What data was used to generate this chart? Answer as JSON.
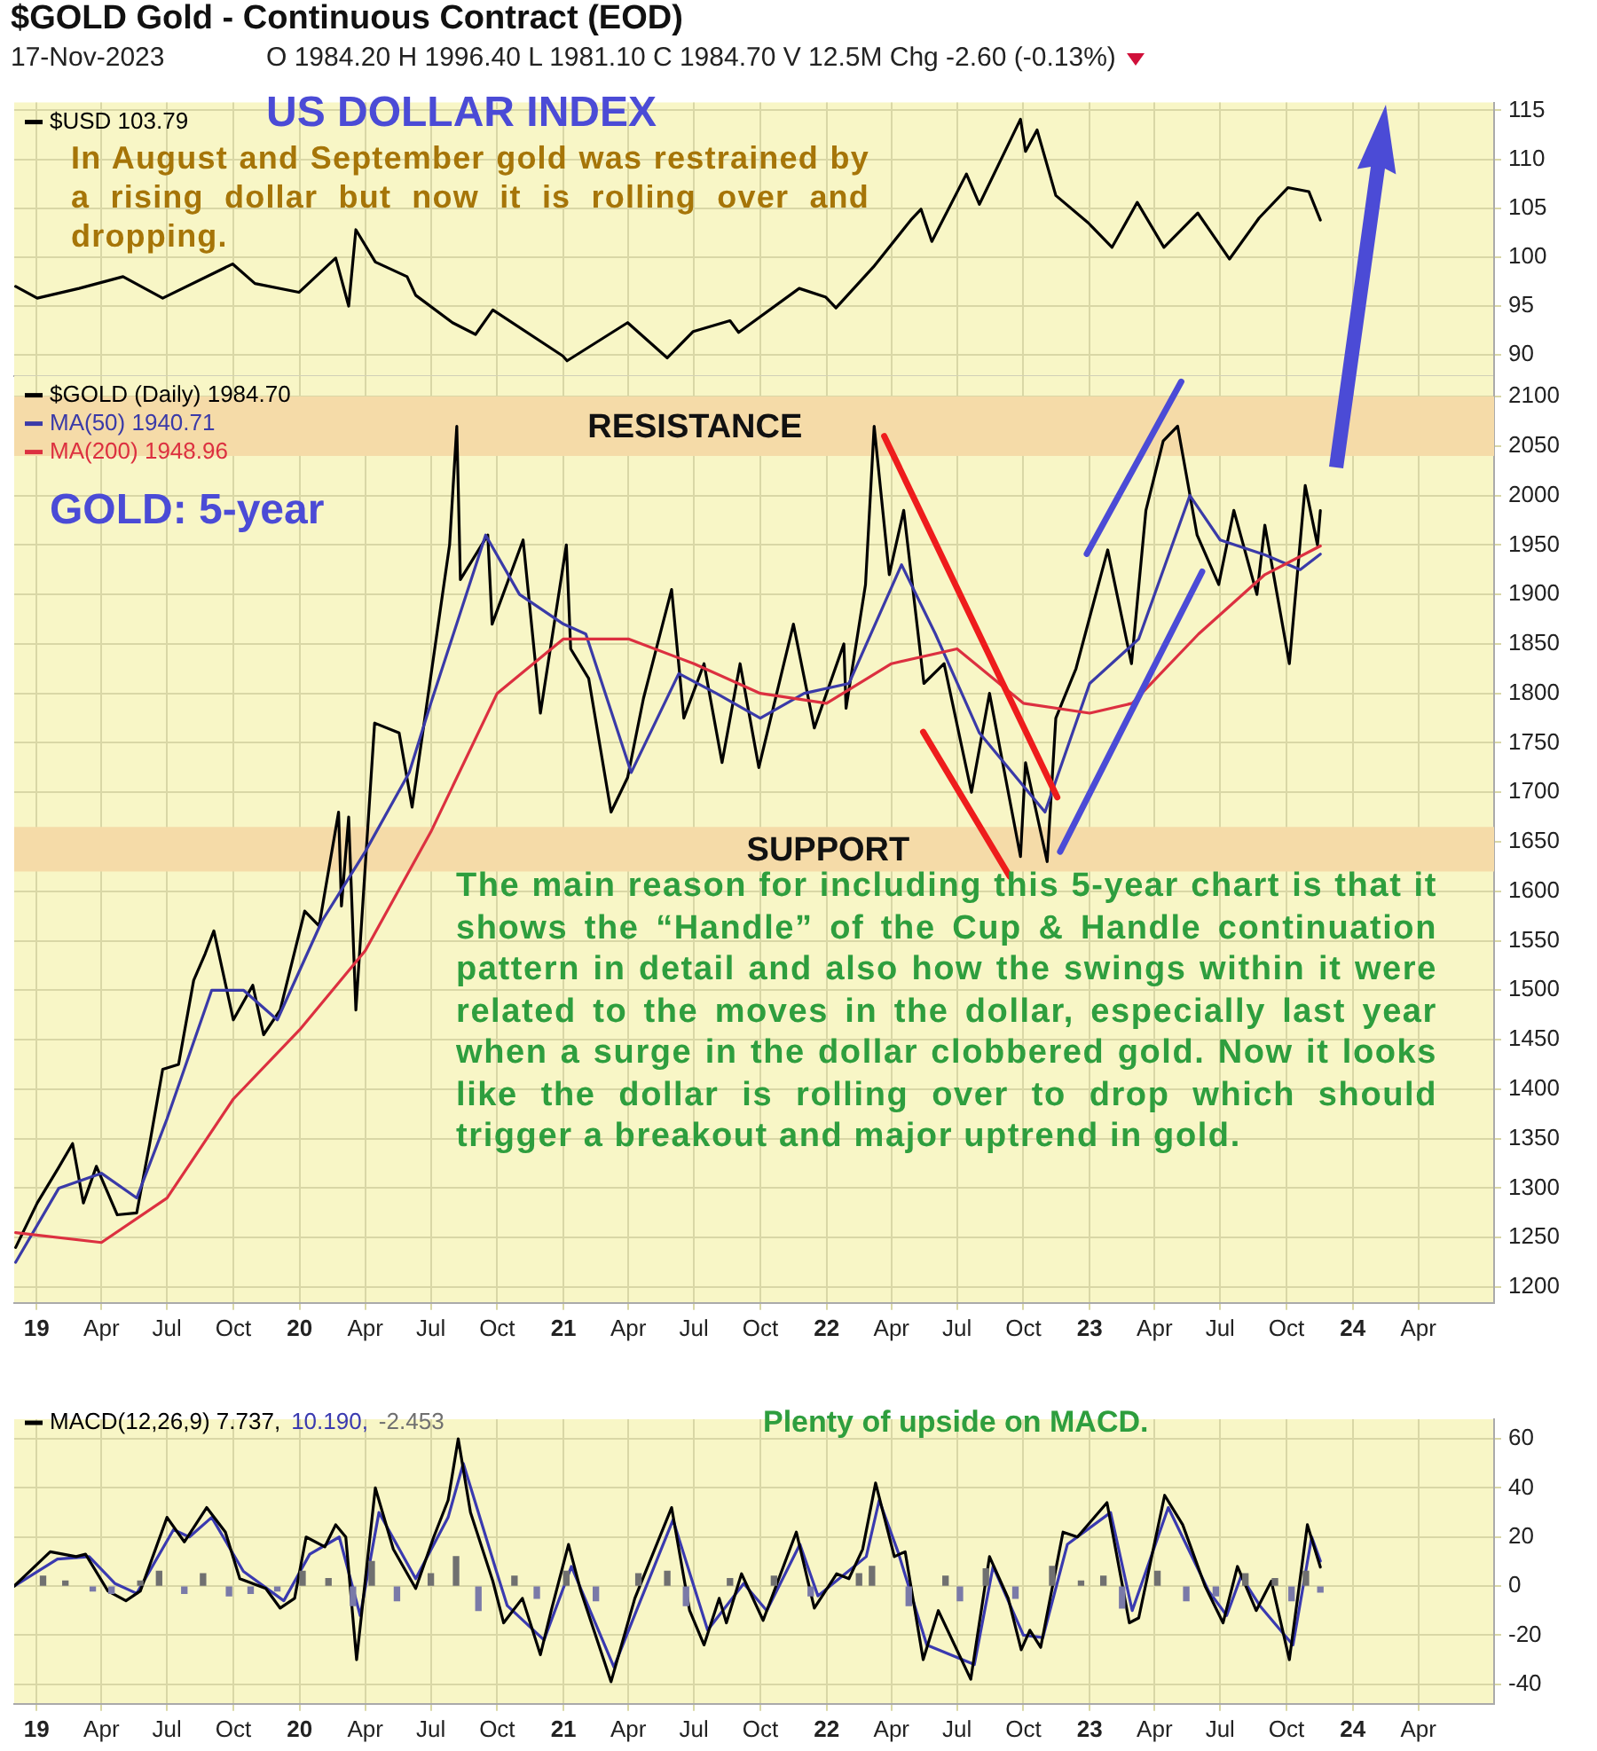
{
  "chart_data": [
    {
      "type": "line",
      "title": "$GOLD Gold - Continuous Contract (EOD)",
      "subtitle": "17-Nov-2023",
      "annotations": [
        "O 1984.20 H 1996.40 L 1981.10 C 1984.70 V 12.5M Chg -2.60 (-0.13%)",
        "US DOLLAR INDEX",
        "In August and September gold was restrained by a rising dollar but now it is rolling over and dropping."
      ],
      "xlim": [
        "2018-12-01",
        "2024-07-15"
      ],
      "xticks": [
        {
          "value": "2019-01",
          "label": null
        },
        {
          "value": "2019-04",
          "label": null
        },
        {
          "value": "2019-07",
          "label": null
        },
        {
          "value": "2019-10",
          "label": null
        },
        {
          "value": "2020-01",
          "label": null
        },
        {
          "value": "2020-04",
          "label": null
        },
        {
          "value": "2020-07",
          "label": null
        },
        {
          "value": "2020-10",
          "label": null
        },
        {
          "value": "2021-01",
          "label": null
        },
        {
          "value": "2021-04",
          "label": null
        },
        {
          "value": "2021-07",
          "label": null
        },
        {
          "value": "2021-10",
          "label": null
        },
        {
          "value": "2022-01",
          "label": null
        },
        {
          "value": "2022-04",
          "label": null
        },
        {
          "value": "2022-07",
          "label": null
        },
        {
          "value": "2022-10",
          "label": null
        },
        {
          "value": "2023-01",
          "label": null
        },
        {
          "value": "2023-04",
          "label": null
        },
        {
          "value": "2023-07",
          "label": null
        },
        {
          "value": "2023-10",
          "label": null
        },
        {
          "value": "2024-01",
          "label": null
        },
        {
          "value": "2024-04",
          "label": null
        }
      ],
      "ylim": [
        87.8,
        115.8
      ],
      "yticks": [
        90,
        95,
        100,
        105,
        110,
        115
      ],
      "tick_labels": "y",
      "grid": true,
      "legend": "top left",
      "marker": "none",
      "series": [
        {
          "name": "$USD 103.79",
          "color": "#000000",
          "x": [
            "2018-12-03",
            "2019-01-02",
            "2019-03-01",
            "2019-05-01",
            "2019-06-25",
            "2019-09-30",
            "2019-10-31",
            "2019-12-31",
            "2020-02-20",
            "2020-03-09",
            "2020-03-19",
            "2020-04-15",
            "2020-05-29",
            "2020-06-10",
            "2020-07-31",
            "2020-09-01",
            "2020-09-25",
            "2020-12-31",
            "2021-01-06",
            "2021-03-31",
            "2021-05-25",
            "2021-06-30",
            "2021-08-20",
            "2021-09-01",
            "2021-11-24",
            "2021-12-31",
            "2022-01-14",
            "2022-03-07",
            "2022-04-28",
            "2022-05-12",
            "2022-05-27",
            "2022-07-14",
            "2022-08-01",
            "2022-09-27",
            "2022-10-04",
            "2022-10-20",
            "2022-11-15",
            "2022-12-30",
            "2023-02-01",
            "2023-03-08",
            "2023-04-14",
            "2023-05-31",
            "2023-07-14",
            "2023-08-24",
            "2023-10-03",
            "2023-11-01",
            "2023-11-17"
          ],
          "values": [
            97,
            95.8,
            96.8,
            98,
            95.8,
            99.3,
            97.3,
            96.4,
            99.9,
            95,
            102.8,
            99.5,
            98,
            96.1,
            93.3,
            92.1,
            94.6,
            89.9,
            89.4,
            93.3,
            89.7,
            92.4,
            93.5,
            92.3,
            96.8,
            95.9,
            94.8,
            99,
            103.8,
            104.9,
            101.6,
            108.5,
            105.4,
            114.1,
            110.8,
            113,
            106.3,
            103.5,
            101,
            105.6,
            101,
            104.5,
            99.8,
            104,
            107.1,
            106.7,
            103.79
          ]
        }
      ]
    },
    {
      "type": "line",
      "annotations": [
        "GOLD: 5-year",
        "The main reason for including this 5-year chart is that it shows the “Handle” of the Cup & Handle continuation pattern in detail and also how the swings within it were related to the moves in the dollar, especially last year when a surge in the dollar clobbered gold. Now it looks like the dollar is rolling over to drop which should trigger a breakout and major uptrend in gold."
      ],
      "xlim": [
        "2018-12-01",
        "2024-07-15"
      ],
      "xticks": [
        {
          "value": "2019-01",
          "label": "19"
        },
        {
          "value": "2019-04",
          "label": "Apr"
        },
        {
          "value": "2019-07",
          "label": "Jul"
        },
        {
          "value": "2019-10",
          "label": "Oct"
        },
        {
          "value": "2020-01",
          "label": "20"
        },
        {
          "value": "2020-04",
          "label": "Apr"
        },
        {
          "value": "2020-07",
          "label": "Jul"
        },
        {
          "value": "2020-10",
          "label": "Oct"
        },
        {
          "value": "2021-01",
          "label": "21"
        },
        {
          "value": "2021-04",
          "label": "Apr"
        },
        {
          "value": "2021-07",
          "label": "Jul"
        },
        {
          "value": "2021-10",
          "label": "Oct"
        },
        {
          "value": "2022-01",
          "label": "22"
        },
        {
          "value": "2022-04",
          "label": "Apr"
        },
        {
          "value": "2022-07",
          "label": "Jul"
        },
        {
          "value": "2022-10",
          "label": "Oct"
        },
        {
          "value": "2023-01",
          "label": "23"
        },
        {
          "value": "2023-04",
          "label": "Apr"
        },
        {
          "value": "2023-07",
          "label": "Jul"
        },
        {
          "value": "2023-10",
          "label": "Oct"
        },
        {
          "value": "2024-01",
          "label": "24"
        },
        {
          "value": "2024-04",
          "label": "Apr"
        }
      ],
      "ylim": [
        1184,
        2121
      ],
      "yticks": [
        1200,
        1250,
        1300,
        1350,
        1400,
        1450,
        1500,
        1550,
        1600,
        1650,
        1700,
        1750,
        1800,
        1850,
        1900,
        1950,
        2000,
        2050,
        2100
      ],
      "grid": true,
      "legend": "top left",
      "marker": "none",
      "bands": [
        {
          "axis": "y",
          "from": 2040,
          "to": 2100,
          "label": "RESISTANCE",
          "color": "#f5dba8"
        },
        {
          "axis": "y",
          "from": 1620,
          "to": 1665,
          "label": "SUPPORT",
          "color": "#f5dba8"
        }
      ],
      "series": [
        {
          "name": "$GOLD (Daily) 1984.70",
          "color": "#000000",
          "x": [
            "2018-12-03",
            "2019-01-02",
            "2019-01-31",
            "2019-02-20",
            "2019-03-07",
            "2019-03-25",
            "2019-04-23",
            "2019-05-20",
            "2019-06-07",
            "2019-06-25",
            "2019-07-17",
            "2019-08-07",
            "2019-08-23",
            "2019-09-04",
            "2019-10-01",
            "2019-10-28",
            "2019-11-12",
            "2019-12-05",
            "2020-01-08",
            "2020-01-28",
            "2020-02-24",
            "2020-02-28",
            "2020-03-09",
            "2020-03-19",
            "2020-04-14",
            "2020-05-18",
            "2020-06-05",
            "2020-07-27",
            "2020-08-06",
            "2020-08-11",
            "2020-09-18",
            "2020-09-24",
            "2020-11-06",
            "2020-11-30",
            "2021-01-05",
            "2021-01-11",
            "2021-02-05",
            "2021-03-08",
            "2021-03-31",
            "2021-04-22",
            "2021-05-31",
            "2021-06-17",
            "2021-07-15",
            "2021-08-09",
            "2021-09-03",
            "2021-09-29",
            "2021-11-16",
            "2021-12-15",
            "2022-01-25",
            "2022-01-28",
            "2022-02-24",
            "2022-03-08",
            "2022-03-29",
            "2022-04-18",
            "2022-05-16",
            "2022-06-13",
            "2022-07-21",
            "2022-08-15",
            "2022-09-27",
            "2022-10-04",
            "2022-11-03",
            "2022-11-15",
            "2022-12-13",
            "2023-01-26",
            "2023-02-28",
            "2023-03-20",
            "2023-04-13",
            "2023-05-03",
            "2023-05-30",
            "2023-06-29",
            "2023-07-20",
            "2023-08-21",
            "2023-09-01",
            "2023-10-05",
            "2023-10-27",
            "2023-11-13",
            "2023-11-17"
          ],
          "values": [
            1240,
            1285,
            1320,
            1345,
            1285,
            1322,
            1273,
            1275,
            1345,
            1420,
            1425,
            1510,
            1537,
            1560,
            1470,
            1505,
            1455,
            1480,
            1580,
            1565,
            1680,
            1585,
            1675,
            1480,
            1770,
            1760,
            1685,
            1950,
            2070,
            1915,
            1960,
            1870,
            1955,
            1780,
            1950,
            1845,
            1815,
            1680,
            1715,
            1795,
            1905,
            1775,
            1830,
            1730,
            1830,
            1725,
            1870,
            1765,
            1850,
            1785,
            1910,
            2070,
            1920,
            1985,
            1810,
            1830,
            1700,
            1800,
            1635,
            1730,
            1630,
            1775,
            1825,
            1945,
            1830,
            1985,
            2055,
            2070,
            1960,
            1910,
            1985,
            1900,
            1970,
            1830,
            2010,
            1950,
            1984.7
          ]
        },
        {
          "name": "MA(50) 1940.71",
          "color": "#3a3aa8",
          "x": [
            "2018-12-03",
            "2019-02-01",
            "2019-04-01",
            "2019-05-20",
            "2019-07-01",
            "2019-09-01",
            "2019-10-15",
            "2019-12-01",
            "2020-02-01",
            "2020-04-01",
            "2020-06-01",
            "2020-07-01",
            "2020-09-15",
            "2020-11-01",
            "2021-01-01",
            "2021-02-01",
            "2021-04-05",
            "2021-06-10",
            "2021-08-01",
            "2021-10-01",
            "2021-12-01",
            "2022-02-01",
            "2022-04-15",
            "2022-06-01",
            "2022-08-01",
            "2022-10-31",
            "2023-01-01",
            "2023-03-10",
            "2023-05-20",
            "2023-07-01",
            "2023-09-01",
            "2023-10-20",
            "2023-11-17"
          ],
          "values": [
            1225,
            1300,
            1315,
            1290,
            1370,
            1500,
            1500,
            1470,
            1570,
            1640,
            1720,
            1790,
            1960,
            1900,
            1870,
            1860,
            1720,
            1820,
            1800,
            1775,
            1800,
            1810,
            1930,
            1860,
            1760,
            1680,
            1810,
            1855,
            2000,
            1955,
            1940,
            1925,
            1940.71
          ]
        },
        {
          "name": "MA(200) 1948.96",
          "color": "#dc3040",
          "x": [
            "2018-12-03",
            "2019-04-01",
            "2019-07-01",
            "2019-10-01",
            "2020-01-01",
            "2020-04-01",
            "2020-07-01",
            "2020-10-01",
            "2021-01-01",
            "2021-04-01",
            "2021-07-01",
            "2021-10-01",
            "2022-01-01",
            "2022-04-01",
            "2022-07-01",
            "2022-10-01",
            "2023-01-01",
            "2023-03-01",
            "2023-06-01",
            "2023-09-01",
            "2023-11-17"
          ],
          "values": [
            1255,
            1245,
            1290,
            1390,
            1460,
            1540,
            1660,
            1800,
            1855,
            1855,
            1830,
            1800,
            1790,
            1830,
            1845,
            1790,
            1780,
            1790,
            1860,
            1920,
            1948.96
          ]
        },
        {
          "color": "#ee1c1c",
          "x": [
            "2022-03-22",
            "2022-11-17"
          ],
          "values": [
            2060,
            1695
          ]
        },
        {
          "color": "#ee1c1c",
          "x": [
            "2022-05-15",
            "2022-09-12"
          ],
          "values": [
            1761,
            1615
          ]
        },
        {
          "color": "#4b4bd6",
          "x": [
            "2022-12-28",
            "2023-05-08"
          ],
          "values": [
            1941,
            2115
          ]
        },
        {
          "color": "#4b4bd6",
          "x": [
            "2022-11-21",
            "2023-06-06"
          ],
          "values": [
            1640,
            1923
          ]
        }
      ]
    },
    {
      "type": "line",
      "annotations": [
        "Plenty of upside on MACD."
      ],
      "xlim": [
        "2018-12-01",
        "2024-07-15"
      ],
      "xticks": [
        {
          "value": "2019-01",
          "label": "19"
        },
        {
          "value": "2019-04",
          "label": "Apr"
        },
        {
          "value": "2019-07",
          "label": "Jul"
        },
        {
          "value": "2019-10",
          "label": "Oct"
        },
        {
          "value": "2020-01",
          "label": "20"
        },
        {
          "value": "2020-04",
          "label": "Apr"
        },
        {
          "value": "2020-07",
          "label": "Jul"
        },
        {
          "value": "2020-10",
          "label": "Oct"
        },
        {
          "value": "2021-01",
          "label": "21"
        },
        {
          "value": "2021-04",
          "label": "Apr"
        },
        {
          "value": "2021-07",
          "label": "Jul"
        },
        {
          "value": "2021-10",
          "label": "Oct"
        },
        {
          "value": "2022-01",
          "label": "22"
        },
        {
          "value": "2022-04",
          "label": "Apr"
        },
        {
          "value": "2022-07",
          "label": "Jul"
        },
        {
          "value": "2022-10",
          "label": "Oct"
        },
        {
          "value": "2023-01",
          "label": "23"
        },
        {
          "value": "2023-04",
          "label": "Apr"
        },
        {
          "value": "2023-07",
          "label": "Jul"
        },
        {
          "value": "2023-10",
          "label": "Oct"
        },
        {
          "value": "2024-01",
          "label": "24"
        },
        {
          "value": "2024-04",
          "label": "Apr"
        }
      ],
      "ylim": [
        -48,
        68
      ],
      "yticks": [
        -40,
        -20,
        0,
        20,
        40,
        60
      ],
      "grid": true,
      "legend": "top left",
      "marker": "none",
      "series": [
        {
          "name": "-2.453",
          "type": "bar",
          "color": "#707070",
          "colors": [
            "#707070",
            "#707070",
            "#7a7aa8",
            "#7a7aa8",
            "#707070",
            "#707070",
            "#7a7aa8",
            "#707070",
            "#7a7aa8",
            "#7a7aa8",
            "#7a7aa8",
            "#707070",
            "#707070",
            "#7a7aa8",
            "#707070",
            "#7a7aa8",
            "#707070",
            "#707070",
            "#7a7aa8",
            "#707070",
            "#7a7aa8",
            "#707070",
            "#7a7aa8",
            "#707070",
            "#707070",
            "#7a7aa8",
            "#707070",
            "#707070",
            "#7a7aa8",
            "#707070",
            "#707070",
            "#7a7aa8",
            "#707070",
            "#7a7aa8",
            "#707070",
            "#7a7aa8",
            "#707070",
            "#707070",
            "#707070",
            "#7a7aa8",
            "#707070",
            "#7a7aa8",
            "#7a7aa8",
            "#707070",
            "#707070",
            "#7a7aa8",
            "#707070",
            "#7a7aa8"
          ],
          "x": [
            "2019-01-10",
            "2019-02-10",
            "2019-03-20",
            "2019-04-15",
            "2019-05-25",
            "2019-06-20",
            "2019-07-25",
            "2019-08-20",
            "2019-09-25",
            "2019-10-25",
            "2019-12-01",
            "2020-01-05",
            "2020-02-10",
            "2020-03-15",
            "2020-04-10",
            "2020-05-15",
            "2020-07-01",
            "2020-08-05",
            "2020-09-05",
            "2020-10-25",
            "2020-11-25",
            "2021-01-05",
            "2021-02-15",
            "2021-04-15",
            "2021-05-25",
            "2021-06-20",
            "2021-08-20",
            "2021-10-20",
            "2021-12-10",
            "2022-02-15",
            "2022-03-05",
            "2022-04-25",
            "2022-06-15",
            "2022-07-05",
            "2022-08-10",
            "2022-09-20",
            "2022-11-10",
            "2022-12-20",
            "2023-01-20",
            "2023-02-15",
            "2023-04-05",
            "2023-05-15",
            "2023-06-25",
            "2023-08-05",
            "2023-09-15",
            "2023-10-08",
            "2023-10-28",
            "2023-11-17"
          ],
          "values": [
            4,
            2,
            -2,
            -3,
            2,
            6,
            -3,
            5,
            -4,
            -3,
            -2,
            6,
            3,
            -8,
            10,
            -6,
            5,
            12,
            -10,
            4,
            -5,
            6,
            -6,
            5,
            6,
            -8,
            3,
            4,
            -4,
            5,
            8,
            -8,
            4,
            -6,
            7,
            -5,
            8,
            2,
            4,
            -9,
            6,
            -6,
            -4,
            5,
            3,
            -6,
            6,
            -2.453
          ]
        },
        {
          "name": "10.190,",
          "color": "#3a3ab0",
          "x": [
            "2018-12-01",
            "2019-01-30",
            "2019-03-15",
            "2019-04-20",
            "2019-05-20",
            "2019-07-10",
            "2019-08-01",
            "2019-09-01",
            "2019-10-15",
            "2019-12-10",
            "2020-01-15",
            "2020-02-25",
            "2020-03-25",
            "2020-04-20",
            "2020-06-10",
            "2020-07-25",
            "2020-08-15",
            "2020-09-30",
            "2020-10-15",
            "2020-12-05",
            "2021-01-12",
            "2021-03-12",
            "2021-04-15",
            "2021-06-02",
            "2021-07-20",
            "2021-09-08",
            "2021-10-10",
            "2021-11-25",
            "2021-12-20",
            "2022-02-25",
            "2022-03-15",
            "2022-04-10",
            "2022-05-20",
            "2022-07-25",
            "2022-08-20",
            "2022-10-01",
            "2022-10-28",
            "2022-12-01",
            "2023-01-30",
            "2023-03-01",
            "2023-04-20",
            "2023-06-15",
            "2023-07-10",
            "2023-07-30",
            "2023-08-25",
            "2023-10-10",
            "2023-11-05",
            "2023-11-17"
          ],
          "values": [
            0,
            11,
            12,
            1,
            -3,
            23,
            20,
            28,
            6,
            -6,
            13,
            20,
            -12,
            30,
            3,
            28,
            50,
            6,
            -8,
            -22,
            8,
            -33,
            -8,
            27,
            -18,
            1,
            -10,
            17,
            -4,
            12,
            35,
            14,
            -24,
            -32,
            8,
            -20,
            -21,
            17,
            30,
            -10,
            32,
            -2,
            -12,
            4,
            -8,
            -24,
            20,
            10.19
          ]
        },
        {
          "name": "MACD(12,26,9) 7.737,",
          "color": "#000000",
          "x": [
            "2018-12-01",
            "2019-01-20",
            "2019-02-25",
            "2019-03-10",
            "2019-04-10",
            "2019-05-05",
            "2019-05-25",
            "2019-07-01",
            "2019-07-25",
            "2019-08-25",
            "2019-09-20",
            "2019-10-10",
            "2019-11-15",
            "2019-12-05",
            "2019-12-25",
            "2020-01-10",
            "2020-02-05",
            "2020-02-20",
            "2020-03-05",
            "2020-03-20",
            "2020-04-15",
            "2020-05-10",
            "2020-06-10",
            "2020-07-05",
            "2020-07-25",
            "2020-08-08",
            "2020-08-25",
            "2020-09-25",
            "2020-10-10",
            "2020-11-05",
            "2020-11-30",
            "2020-12-15",
            "2021-01-08",
            "2021-01-25",
            "2021-03-08",
            "2021-04-10",
            "2021-05-31",
            "2021-06-25",
            "2021-07-15",
            "2021-08-05",
            "2021-08-15",
            "2021-09-05",
            "2021-10-05",
            "2021-11-20",
            "2021-12-15",
            "2022-01-15",
            "2022-02-01",
            "2022-02-20",
            "2022-03-10",
            "2022-04-05",
            "2022-04-20",
            "2022-05-15",
            "2022-06-05",
            "2022-07-20",
            "2022-08-15",
            "2022-09-10",
            "2022-09-28",
            "2022-10-10",
            "2022-10-25",
            "2022-11-25",
            "2022-12-15",
            "2023-01-25",
            "2023-02-25",
            "2023-03-10",
            "2023-04-15",
            "2023-05-10",
            "2023-06-10",
            "2023-07-05",
            "2023-07-25",
            "2023-08-20",
            "2023-09-10",
            "2023-10-05",
            "2023-10-30",
            "2023-11-17"
          ],
          "values": [
            0,
            14,
            12,
            13,
            -2,
            -6,
            -2,
            28,
            18,
            32,
            22,
            3,
            -1,
            -9,
            -5,
            20,
            16,
            25,
            20,
            -30,
            40,
            15,
            -1,
            20,
            35,
            60,
            30,
            2,
            -15,
            -5,
            -28,
            -10,
            17,
            -2,
            -39,
            -5,
            32,
            -10,
            -24,
            -5,
            -15,
            5,
            -14,
            22,
            -9,
            5,
            3,
            15,
            42,
            12,
            14,
            -30,
            -10,
            -38,
            12,
            -5,
            -26,
            -18,
            -25,
            22,
            20,
            34,
            -15,
            -13,
            37,
            25,
            0,
            -15,
            8,
            -10,
            2,
            -30,
            25,
            7.737
          ]
        }
      ]
    }
  ]
}
